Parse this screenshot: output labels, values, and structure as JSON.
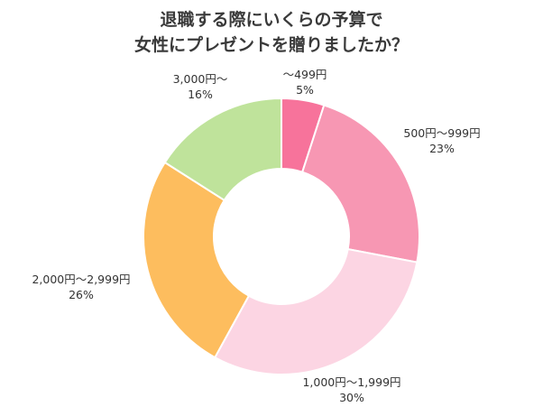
{
  "chart_data": {
    "type": "pie",
    "donut": true,
    "title_lines": [
      "退職する際にいくらの予算で",
      "女性にプレゼントを贈りましたか？"
    ],
    "categories": [
      "～499円",
      "500円～999円",
      "1,000円～1,999円",
      "2,000円～2,999円",
      "3,000円～"
    ],
    "values": [
      5,
      23,
      30,
      26,
      16
    ],
    "value_labels": [
      "5%",
      "23%",
      "30%",
      "26%",
      "16%"
    ],
    "colors": [
      "#f7739b",
      "#f797b3",
      "#fcd5e3",
      "#fdbd5e",
      "#bfe39b"
    ]
  }
}
